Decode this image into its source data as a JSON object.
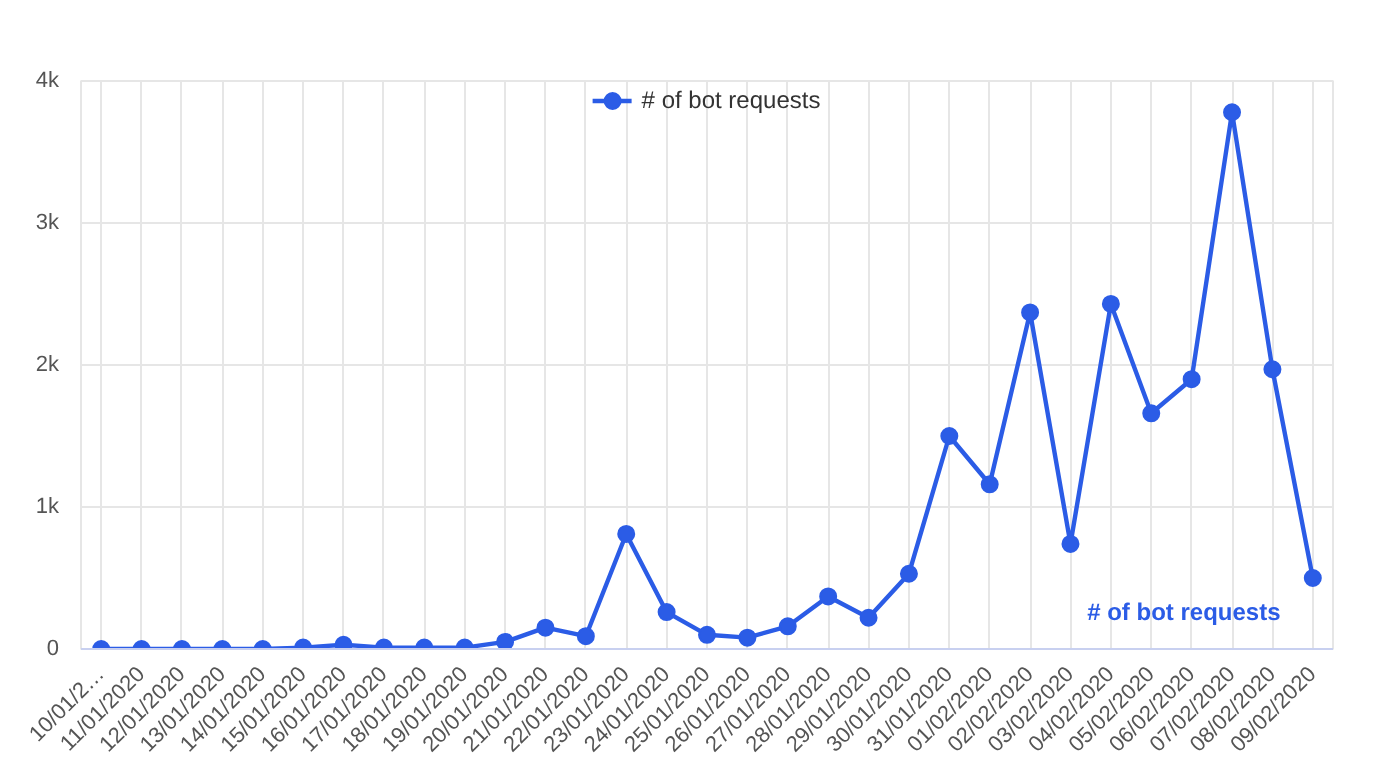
{
  "chart_data": {
    "type": "line",
    "categories": [
      "10/01/2…",
      "11/01/2020",
      "12/01/2020",
      "13/01/2020",
      "14/01/2020",
      "15/01/2020",
      "16/01/2020",
      "17/01/2020",
      "18/01/2020",
      "19/01/2020",
      "20/01/2020",
      "21/01/2020",
      "22/01/2020",
      "23/01/2020",
      "24/01/2020",
      "25/01/2020",
      "26/01/2020",
      "27/01/2020",
      "28/01/2020",
      "29/01/2020",
      "30/01/2020",
      "31/01/2020",
      "01/02/2020",
      "02/02/2020",
      "03/02/2020",
      "04/02/2020",
      "05/02/2020",
      "06/02/2020",
      "07/02/2020",
      "08/02/2020",
      "09/02/2020"
    ],
    "series": [
      {
        "name": "# of bot requests",
        "color": "#2b5ce6",
        "values": [
          0,
          0,
          0,
          0,
          0,
          10,
          30,
          10,
          10,
          10,
          50,
          150,
          90,
          810,
          260,
          100,
          80,
          160,
          370,
          220,
          530,
          1500,
          1160,
          2370,
          740,
          2430,
          1660,
          1900,
          3780,
          1970,
          500
        ]
      }
    ],
    "annotations": [
      "# of bot requests"
    ],
    "ylim": [
      0,
      4000
    ],
    "yticks": [
      0,
      {
        "value": 1000,
        "label": "1k"
      },
      {
        "value": 2000,
        "label": "2k"
      },
      {
        "value": 3000,
        "label": "3k"
      },
      {
        "value": 4000,
        "label": "4k"
      }
    ],
    "grid": true,
    "legend": "top",
    "marker": "circle",
    "line_style": "solid"
  }
}
